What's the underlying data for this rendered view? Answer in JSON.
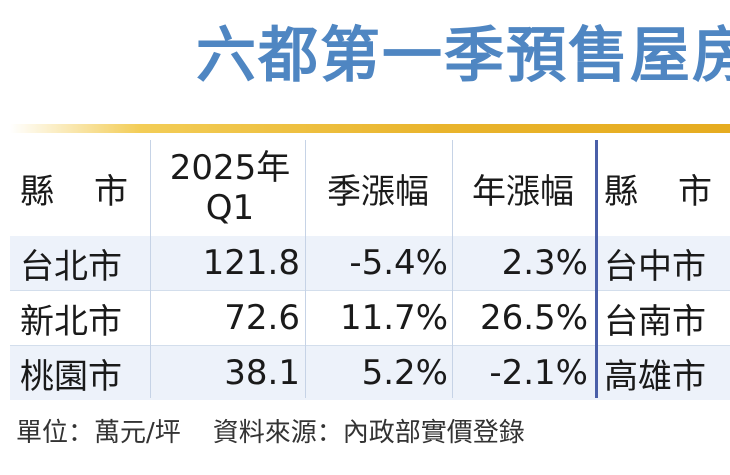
{
  "title": "六都第一季預售屋房",
  "columns": {
    "county": "縣市",
    "q1_line1": "2025年",
    "q1_line2": "Q1",
    "qoq": "季漲幅",
    "yoy": "年漲幅",
    "county2": "縣市"
  },
  "rows": [
    {
      "county": "台北市",
      "q1": "121.8",
      "qoq": "-5.4%",
      "yoy": "2.3%",
      "county2": "台中市"
    },
    {
      "county": "新北市",
      "q1": "72.6",
      "qoq": "11.7%",
      "yoy": "26.5%",
      "county2": "台南市"
    },
    {
      "county": "桃園市",
      "q1": "38.1",
      "qoq": "5.2%",
      "yoy": "-2.1%",
      "county2": "高雄市"
    }
  ],
  "footer": {
    "unit": "單位：萬元/坪",
    "source": "資料來源：內政部實價登錄"
  },
  "colors": {
    "title": "#4f86c2",
    "accent_bar": "#e9b42c",
    "row_shade": "#edf2fa",
    "divider": "#4a5fa8"
  }
}
